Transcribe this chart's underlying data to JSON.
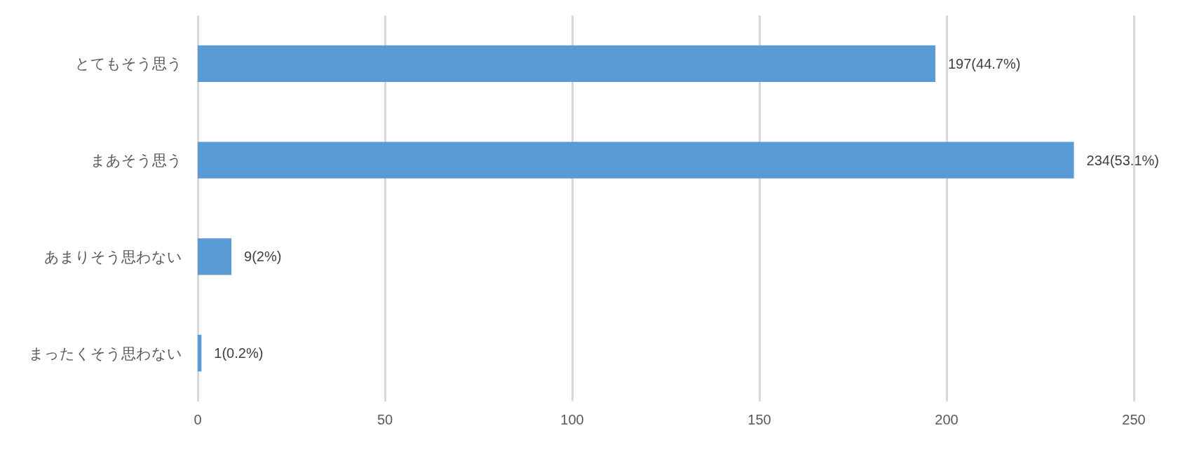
{
  "chart_data": {
    "type": "bar",
    "orientation": "horizontal",
    "categories": [
      "とてもそう思う",
      "まあそう思う",
      "あまりそう思わない",
      "まったくそう思わない"
    ],
    "values": [
      197,
      234,
      9,
      1
    ],
    "value_labels": [
      "197(44.7%)",
      "234(53.1%)",
      "9(2%)",
      "1(0.2%)"
    ],
    "color": "#5b9bd5",
    "xlim": [
      0,
      250
    ],
    "xticks": [
      0,
      50,
      100,
      150,
      200,
      250
    ],
    "grid": "x"
  }
}
